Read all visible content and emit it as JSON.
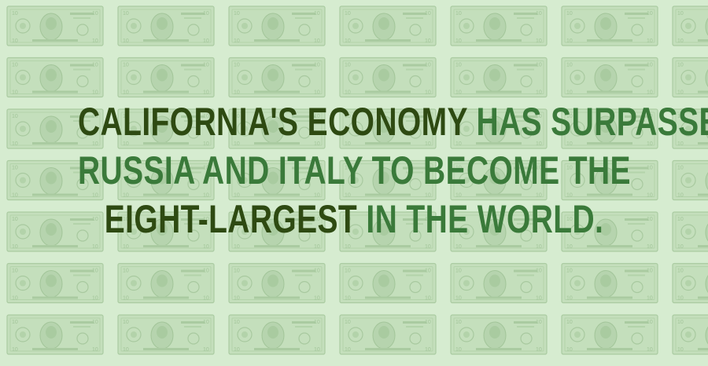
{
  "background": {
    "pattern": "ten-dollar-bill-icon",
    "color": "#d6ecd0",
    "bill_color": "#b7d6ae"
  },
  "headline": {
    "line1": [
      {
        "text": "CALIFORNIA'S ECONOMY ",
        "tone": "dark"
      },
      {
        "text": "HAS SURPASSED",
        "tone": "green"
      }
    ],
    "line2": [
      {
        "text": "RUSSIA AND ITALY TO BECOME THE",
        "tone": "green"
      }
    ],
    "line3": [
      {
        "text": "EIGHT-LARGEST ",
        "tone": "dark"
      },
      {
        "text": "IN THE WORLD.",
        "tone": "green"
      }
    ]
  },
  "colors": {
    "dark": "#2e4a12",
    "green": "#3a7a3a"
  }
}
